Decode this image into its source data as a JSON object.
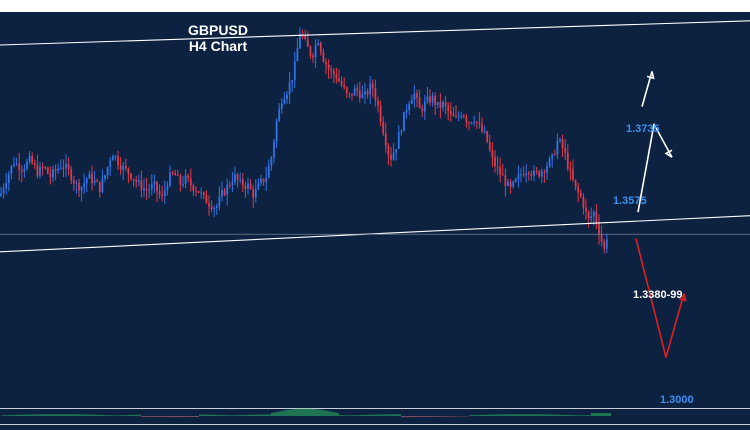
{
  "chart_data": {
    "type": "candlestick",
    "title": "GBPUSD",
    "subtitle": "H4  Chart",
    "xlabel": "",
    "ylabel": "",
    "ylim": [
      1.2935,
      1.3835
    ],
    "grid": false,
    "colors": {
      "background": "#0d2140",
      "bull": "#2f74e8",
      "bear": "#e03a48",
      "channel": "#ffffff",
      "level_blue": "#3b8ff0",
      "level_white": "#ffffff",
      "arrow_up": "#ffffff",
      "arrow_down": "#e02020",
      "oscillator": "#2ec866"
    },
    "price_path": [
      [
        0,
        1.3417
      ],
      [
        6,
        1.3455
      ],
      [
        14,
        1.3495
      ],
      [
        22,
        1.348
      ],
      [
        30,
        1.3498
      ],
      [
        38,
        1.347
      ],
      [
        44,
        1.3483
      ],
      [
        50,
        1.346
      ],
      [
        56,
        1.3475
      ],
      [
        62,
        1.349
      ],
      [
        70,
        1.3468
      ],
      [
        76,
        1.3442
      ],
      [
        82,
        1.3438
      ],
      [
        88,
        1.3462
      ],
      [
        94,
        1.345
      ],
      [
        100,
        1.3435
      ],
      [
        106,
        1.347
      ],
      [
        112,
        1.3518
      ],
      [
        118,
        1.3495
      ],
      [
        124,
        1.3478
      ],
      [
        130,
        1.3468
      ],
      [
        138,
        1.3445
      ],
      [
        146,
        1.343
      ],
      [
        154,
        1.344
      ],
      [
        162,
        1.341
      ],
      [
        168,
        1.3455
      ],
      [
        174,
        1.3468
      ],
      [
        180,
        1.3445
      ],
      [
        186,
        1.3455
      ],
      [
        192,
        1.344
      ],
      [
        198,
        1.343
      ],
      [
        204,
        1.341
      ],
      [
        210,
        1.34
      ],
      [
        216,
        1.339
      ],
      [
        222,
        1.342
      ],
      [
        228,
        1.344
      ],
      [
        234,
        1.3462
      ],
      [
        240,
        1.3445
      ],
      [
        248,
        1.344
      ],
      [
        254,
        1.3418
      ],
      [
        260,
        1.3445
      ],
      [
        266,
        1.346
      ],
      [
        272,
        1.351
      ],
      [
        276,
        1.358
      ],
      [
        282,
        1.364
      ],
      [
        288,
        1.366
      ],
      [
        294,
        1.37
      ],
      [
        300,
        1.379
      ],
      [
        306,
        1.376
      ],
      [
        312,
        1.3735
      ],
      [
        318,
        1.3775
      ],
      [
        324,
        1.3725
      ],
      [
        330,
        1.37
      ],
      [
        336,
        1.369
      ],
      [
        342,
        1.3668
      ],
      [
        348,
        1.364
      ],
      [
        356,
        1.366
      ],
      [
        364,
        1.364
      ],
      [
        372,
        1.367
      ],
      [
        378,
        1.362
      ],
      [
        384,
        1.356
      ],
      [
        390,
        1.35
      ],
      [
        396,
        1.353
      ],
      [
        402,
        1.358
      ],
      [
        408,
        1.363
      ],
      [
        414,
        1.3652
      ],
      [
        420,
        1.361
      ],
      [
        426,
        1.363
      ],
      [
        432,
        1.364
      ],
      [
        438,
        1.362
      ],
      [
        444,
        1.3625
      ],
      [
        450,
        1.36
      ],
      [
        456,
        1.359
      ],
      [
        462,
        1.361
      ],
      [
        468,
        1.3585
      ],
      [
        474,
        1.3595
      ],
      [
        480,
        1.357
      ],
      [
        486,
        1.355
      ],
      [
        492,
        1.35
      ],
      [
        498,
        1.3475
      ],
      [
        504,
        1.3455
      ],
      [
        510,
        1.343
      ],
      [
        516,
        1.345
      ],
      [
        522,
        1.347
      ],
      [
        528,
        1.348
      ],
      [
        534,
        1.3465
      ],
      [
        540,
        1.347
      ],
      [
        546,
        1.3485
      ],
      [
        552,
        1.35
      ],
      [
        558,
        1.3545
      ],
      [
        564,
        1.352
      ],
      [
        570,
        1.347
      ],
      [
        576,
        1.343
      ],
      [
        582,
        1.341
      ],
      [
        588,
        1.336
      ],
      [
        594,
        1.338
      ],
      [
        600,
        1.333
      ],
      [
        604,
        1.3292
      ],
      [
        608,
        1.334
      ]
    ],
    "channel_lines": [
      {
        "name": "upper",
        "points": [
          [
            0,
            1.376
          ],
          [
            750,
            1.3815
          ]
        ]
      },
      {
        "name": "lower",
        "points": [
          [
            0,
            1.329
          ],
          [
            750,
            1.3372
          ]
        ]
      }
    ],
    "current_price": 1.333,
    "levels": [
      {
        "label": "1.3735",
        "color": "#3b8ff0"
      },
      {
        "label": "1.3575",
        "color": "#3b8ff0"
      },
      {
        "label": "1.3380-99",
        "color": "#ffffff"
      },
      {
        "label": "1.3000",
        "color": "#3b8ff0"
      }
    ],
    "scenarios": [
      {
        "name": "bullish",
        "color": "#ffffff",
        "path": [
          [
            638,
            1.338
          ],
          [
            654,
            1.358
          ],
          [
            672,
            1.3505
          ]
        ],
        "extension": [
          [
            642,
            1.362
          ],
          [
            652,
            1.37
          ]
        ]
      },
      {
        "name": "bearish",
        "color": "#e02020",
        "path": [
          [
            636,
            1.332
          ],
          [
            666,
            1.305
          ],
          [
            684,
            1.3195
          ]
        ]
      }
    ]
  }
}
